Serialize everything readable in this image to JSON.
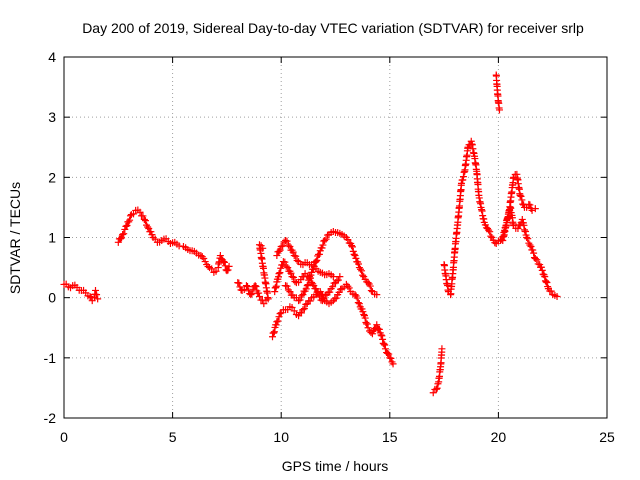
{
  "chart_data": {
    "type": "scatter",
    "title": "Day 200 of 2019, Sidereal Day-to-day VTEC variation (SDTVAR) for receiver srlp",
    "xlabel": "GPS time / hours",
    "ylabel": "SDTVAR / TECUs",
    "xlim": [
      0,
      25
    ],
    "ylim": [
      -2,
      4
    ],
    "xticks": [
      0,
      5,
      10,
      15,
      20,
      25
    ],
    "yticks": [
      -2,
      -1,
      0,
      1,
      2,
      3,
      4
    ],
    "xtick_labels": [
      "0",
      "5",
      "10",
      "15",
      "20",
      "25"
    ],
    "ytick_labels": [
      "-2",
      "-1",
      "0",
      "1",
      "2",
      "3",
      "4"
    ],
    "grid": true,
    "marker": "+",
    "color": "#ff0000",
    "segments": [
      {
        "name": "seg-0",
        "points": [
          [
            0.0,
            0.22
          ],
          [
            0.2,
            0.18
          ],
          [
            0.4,
            0.2
          ],
          [
            0.6,
            0.17
          ],
          [
            0.8,
            0.12
          ],
          [
            1.0,
            0.08
          ],
          [
            1.2,
            0.02
          ],
          [
            1.3,
            -0.05
          ],
          [
            1.4,
            0.0
          ],
          [
            1.45,
            0.12
          ],
          [
            1.5,
            0.05
          ],
          [
            1.55,
            -0.02
          ]
        ]
      },
      {
        "name": "seg-1",
        "points": [
          [
            2.5,
            0.92
          ],
          [
            2.7,
            1.05
          ],
          [
            2.9,
            1.2
          ],
          [
            3.1,
            1.38
          ],
          [
            3.3,
            1.45
          ],
          [
            3.5,
            1.42
          ],
          [
            3.7,
            1.3
          ],
          [
            3.9,
            1.15
          ],
          [
            4.1,
            1.0
          ],
          [
            4.3,
            0.92
          ],
          [
            4.5,
            0.95
          ],
          [
            4.7,
            0.98
          ],
          [
            4.9,
            0.9
          ],
          [
            5.1,
            0.92
          ],
          [
            5.3,
            0.86
          ],
          [
            5.5,
            0.85
          ],
          [
            5.7,
            0.8
          ],
          [
            5.9,
            0.78
          ],
          [
            6.1,
            0.74
          ],
          [
            6.3,
            0.7
          ],
          [
            6.5,
            0.6
          ],
          [
            6.7,
            0.5
          ],
          [
            6.9,
            0.42
          ],
          [
            7.1,
            0.5
          ],
          [
            7.2,
            0.7
          ],
          [
            7.35,
            0.6
          ],
          [
            7.5,
            0.45
          ],
          [
            7.6,
            0.52
          ]
        ]
      },
      {
        "name": "seg-2",
        "points": [
          [
            8.0,
            0.25
          ],
          [
            8.2,
            0.12
          ],
          [
            8.4,
            0.2
          ],
          [
            8.6,
            0.05
          ],
          [
            8.8,
            0.2
          ],
          [
            9.0,
            0.02
          ],
          [
            9.2,
            -0.1
          ],
          [
            9.4,
            -0.02
          ],
          [
            9.0,
            0.88
          ],
          [
            9.15,
            0.82
          ]
        ]
      },
      {
        "name": "seg-3",
        "points": [
          [
            9.6,
            -0.65
          ],
          [
            9.8,
            -0.4
          ],
          [
            10.0,
            -0.25
          ],
          [
            10.2,
            -0.2
          ],
          [
            10.4,
            -0.15
          ],
          [
            10.6,
            -0.22
          ],
          [
            10.8,
            -0.3
          ],
          [
            11.0,
            -0.2
          ],
          [
            11.2,
            -0.1
          ],
          [
            11.4,
            0.0
          ],
          [
            11.6,
            0.05
          ],
          [
            11.8,
            0.1
          ],
          [
            12.0,
            -0.05
          ],
          [
            12.2,
            -0.1
          ],
          [
            12.4,
            -0.05
          ],
          [
            12.6,
            0.05
          ],
          [
            12.8,
            0.15
          ],
          [
            13.0,
            0.22
          ],
          [
            13.2,
            0.1
          ],
          [
            13.4,
            0.05
          ],
          [
            13.6,
            -0.1
          ],
          [
            13.8,
            -0.28
          ],
          [
            14.0,
            -0.5
          ],
          [
            14.2,
            -0.6
          ],
          [
            14.4,
            -0.45
          ],
          [
            14.6,
            -0.62
          ],
          [
            14.8,
            -0.85
          ],
          [
            15.0,
            -1.0
          ],
          [
            15.15,
            -1.1
          ]
        ]
      },
      {
        "name": "seg-4",
        "points": [
          [
            9.7,
            0.1
          ],
          [
            9.9,
            0.4
          ],
          [
            10.1,
            0.6
          ],
          [
            10.3,
            0.5
          ],
          [
            10.5,
            0.35
          ],
          [
            10.7,
            0.25
          ],
          [
            10.9,
            0.3
          ],
          [
            11.1,
            0.4
          ],
          [
            11.3,
            0.35
          ],
          [
            11.5,
            0.2
          ],
          [
            11.7,
            0.05
          ],
          [
            11.9,
            -0.05
          ],
          [
            12.1,
            0.05
          ],
          [
            12.3,
            0.15
          ],
          [
            12.5,
            0.25
          ],
          [
            12.7,
            0.35
          ]
        ]
      },
      {
        "name": "seg-5",
        "points": [
          [
            9.8,
            0.7
          ],
          [
            10.0,
            0.85
          ],
          [
            10.2,
            0.95
          ],
          [
            10.4,
            0.85
          ],
          [
            10.6,
            0.7
          ],
          [
            10.8,
            0.6
          ],
          [
            11.0,
            0.55
          ],
          [
            11.2,
            0.58
          ],
          [
            11.4,
            0.55
          ],
          [
            11.6,
            0.48
          ],
          [
            11.8,
            0.42
          ],
          [
            12.0,
            0.38
          ],
          [
            12.2,
            0.4
          ],
          [
            12.4,
            0.35
          ]
        ]
      },
      {
        "name": "seg-6",
        "points": [
          [
            10.2,
            0.2
          ],
          [
            10.4,
            0.1
          ],
          [
            10.6,
            0.0
          ],
          [
            10.8,
            -0.05
          ],
          [
            11.0,
            0.05
          ],
          [
            11.2,
            0.2
          ],
          [
            11.4,
            0.42
          ],
          [
            11.6,
            0.6
          ],
          [
            11.8,
            0.78
          ],
          [
            12.0,
            0.95
          ],
          [
            12.2,
            1.05
          ],
          [
            12.4,
            1.1
          ],
          [
            12.6,
            1.08
          ],
          [
            12.8,
            1.05
          ],
          [
            13.0,
            1.0
          ],
          [
            13.2,
            0.9
          ],
          [
            13.4,
            0.7
          ],
          [
            13.6,
            0.5
          ],
          [
            13.8,
            0.35
          ],
          [
            14.0,
            0.25
          ],
          [
            14.2,
            0.1
          ],
          [
            14.4,
            0.05
          ]
        ]
      },
      {
        "name": "seg-7",
        "points": [
          [
            17.0,
            -1.58
          ],
          [
            17.15,
            -1.52
          ],
          [
            17.25,
            -1.4
          ],
          [
            17.35,
            -1.1
          ],
          [
            17.4,
            -0.85
          ]
        ]
      },
      {
        "name": "seg-8",
        "points": [
          [
            17.5,
            0.55
          ],
          [
            17.6,
            0.3
          ],
          [
            17.7,
            0.1
          ],
          [
            17.8,
            0.05
          ],
          [
            17.9,
            0.4
          ],
          [
            18.0,
            0.8
          ],
          [
            18.1,
            1.15
          ],
          [
            18.2,
            1.5
          ],
          [
            18.3,
            1.9
          ],
          [
            18.45,
            2.1
          ],
          [
            18.6,
            2.5
          ],
          [
            18.75,
            2.6
          ],
          [
            18.9,
            2.35
          ],
          [
            19.0,
            2.1
          ],
          [
            19.1,
            1.7
          ],
          [
            19.2,
            1.5
          ],
          [
            19.35,
            1.25
          ],
          [
            19.5,
            1.15
          ],
          [
            19.7,
            1.0
          ],
          [
            19.9,
            0.9
          ],
          [
            20.1,
            0.95
          ],
          [
            20.3,
            1.1
          ],
          [
            20.5,
            1.45
          ],
          [
            20.7,
            2.0
          ],
          [
            20.85,
            2.05
          ],
          [
            21.0,
            1.7
          ],
          [
            21.2,
            1.5
          ],
          [
            21.4,
            1.55
          ],
          [
            21.55,
            1.45
          ],
          [
            21.7,
            1.48
          ]
        ]
      },
      {
        "name": "seg-9",
        "points": [
          [
            19.9,
            3.7
          ],
          [
            19.95,
            3.45
          ],
          [
            20.0,
            3.25
          ],
          [
            20.05,
            3.12
          ]
        ]
      },
      {
        "name": "seg-10",
        "points": [
          [
            20.2,
            0.95
          ],
          [
            20.4,
            1.3
          ],
          [
            20.55,
            1.5
          ],
          [
            20.7,
            1.2
          ],
          [
            20.9,
            1.15
          ],
          [
            21.1,
            1.3
          ],
          [
            21.3,
            1.0
          ],
          [
            21.5,
            0.85
          ],
          [
            21.7,
            0.65
          ],
          [
            21.9,
            0.55
          ],
          [
            22.1,
            0.38
          ],
          [
            22.3,
            0.15
          ],
          [
            22.5,
            0.05
          ],
          [
            22.7,
            0.02
          ]
        ]
      }
    ]
  }
}
